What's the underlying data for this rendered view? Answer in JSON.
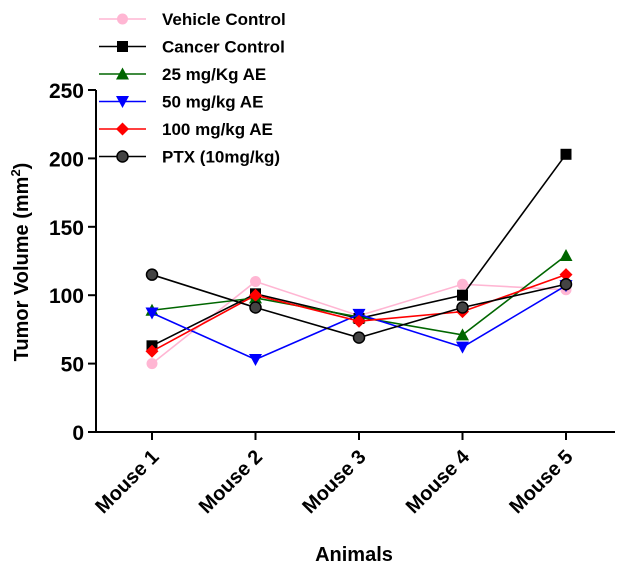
{
  "chart_data": {
    "type": "line",
    "title": "",
    "xlabel": "Animals",
    "ylabel_main": "Tumor Volume (mm",
    "ylabel_sup": "2",
    "ylabel_close": ")",
    "categories": [
      "Mouse 1",
      "Mouse 2",
      "Mouse 3",
      "Mouse 4",
      "Mouse 5"
    ],
    "yticks": [
      "0",
      "50",
      "100",
      "150",
      "200",
      "250"
    ],
    "ylim": [
      0,
      250
    ],
    "grid": false,
    "legend_position": "top-left",
    "series": [
      {
        "name": "Vehicle Control",
        "color": "#ffb6d3",
        "marker": "circle",
        "values": [
          50,
          110,
          85,
          108,
          104
        ]
      },
      {
        "name": "Cancer Control",
        "color": "#000000",
        "marker": "square",
        "values": [
          63,
          101,
          83,
          100,
          203
        ]
      },
      {
        "name": "25 mg/Kg AE",
        "color": "#006600",
        "marker": "triangle-up",
        "values": [
          89,
          98,
          84,
          71,
          129
        ]
      },
      {
        "name": "50 mg/kg AE",
        "color": "#0000ff",
        "marker": "triangle-down",
        "values": [
          87,
          53,
          86,
          62,
          107
        ]
      },
      {
        "name": "100 mg/kg AE",
        "color": "#ff0000",
        "marker": "diamond",
        "values": [
          59,
          100,
          81,
          88,
          115
        ]
      },
      {
        "name": "PTX (10mg/kg)",
        "color": "#000000",
        "marker": "circle-dark",
        "values": [
          115,
          91,
          69,
          91,
          108
        ]
      }
    ]
  }
}
